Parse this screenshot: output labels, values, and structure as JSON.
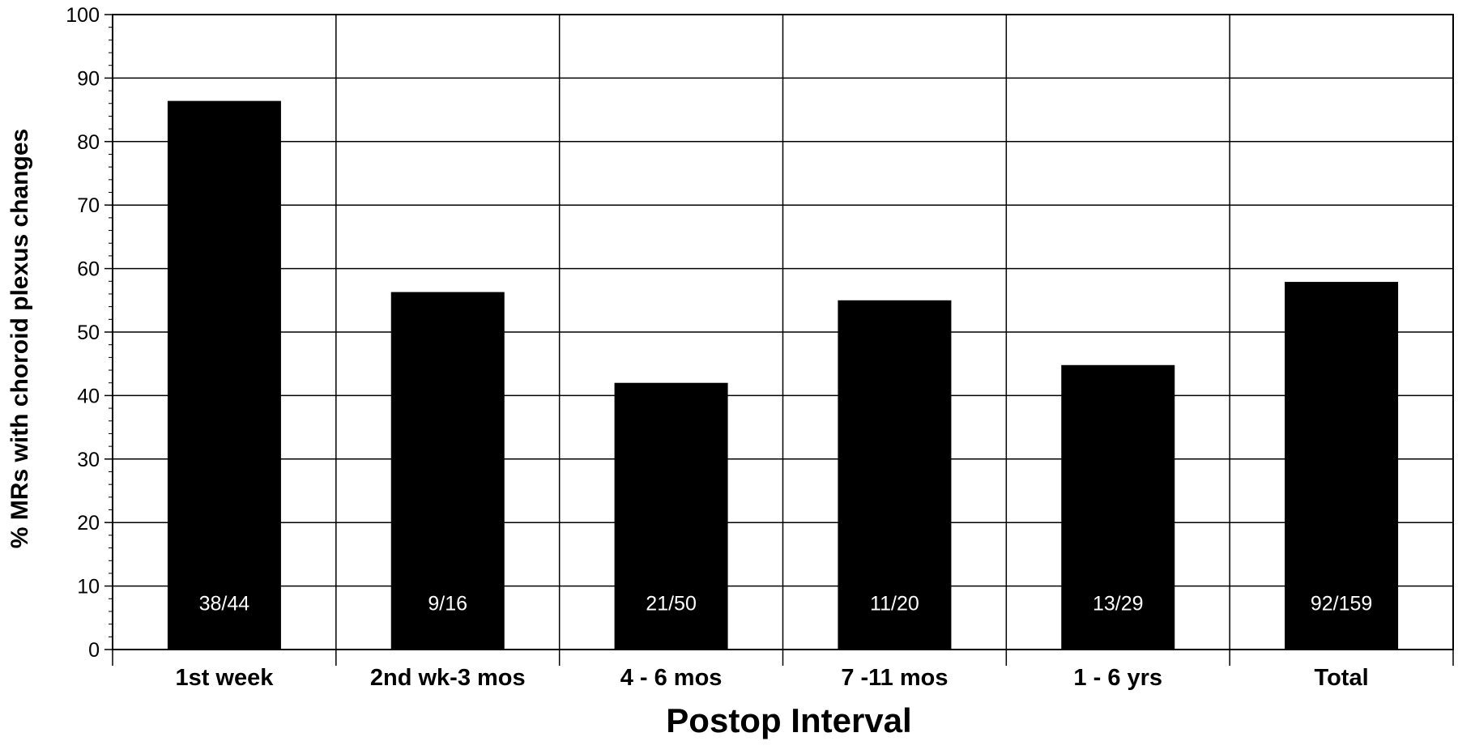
{
  "chart_data": {
    "type": "bar",
    "title": "",
    "xlabel": "Postop Interval",
    "ylabel": "% MRs with choroid plexus changes",
    "categories": [
      "1st week",
      "2nd wk-3 mos",
      "4 - 6 mos",
      "7 -11 mos",
      "1 - 6 yrs",
      "Total"
    ],
    "values": [
      86.4,
      56.3,
      42.0,
      55.0,
      44.8,
      57.9
    ],
    "data_labels": [
      "38/44",
      "9/16",
      "21/50",
      "11/20",
      "13/29",
      "92/159"
    ],
    "ylim": [
      0,
      100
    ],
    "yticks": [
      "0",
      "10",
      "20",
      "30",
      "40",
      "50",
      "60",
      "70",
      "80",
      "90",
      "100"
    ],
    "grid": true,
    "legend": "none",
    "colors": {
      "bar": "#000000",
      "data_label": "#ffffff",
      "grid": "#000000",
      "background": "#ffffff"
    }
  }
}
